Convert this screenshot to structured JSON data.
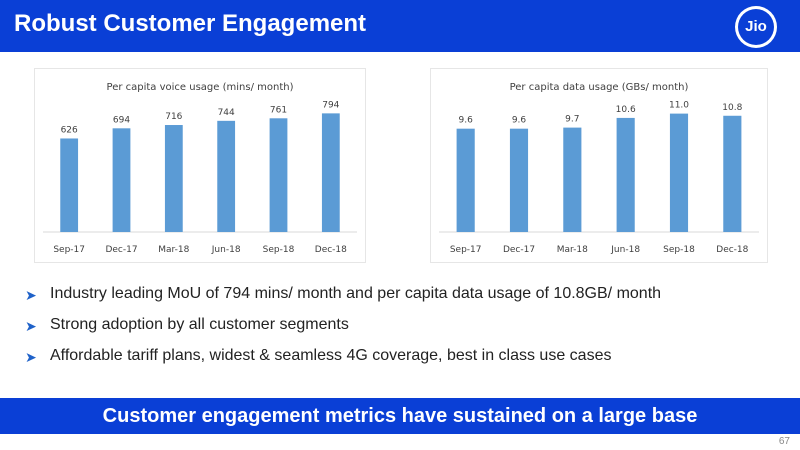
{
  "slide": {
    "title": "Robust Customer Engagement",
    "logo_text": "Jio",
    "footer": "Customer engagement metrics have sustained on a large base",
    "page_number": "67"
  },
  "bullets": [
    "Industry leading MoU of 794 mins/ month and per capita data usage of 10.8GB/ month",
    "Strong adoption by all customer segments",
    "Affordable tariff plans, widest & seamless 4G coverage, best in class use cases"
  ],
  "colors": {
    "brand": "#0a3fd6",
    "bar": "#5b9bd5",
    "bullet_mark": "#1f62c9"
  },
  "chart_data": [
    {
      "type": "bar",
      "title": "Per capita voice usage (mins/ month)",
      "categories": [
        "Sep-17",
        "Dec-17",
        "Mar-18",
        "Jun-18",
        "Sep-18",
        "Dec-18"
      ],
      "values": [
        626,
        694,
        716,
        744,
        761,
        794
      ],
      "labels": [
        "626",
        "694",
        "716",
        "744",
        "761",
        "794"
      ],
      "ylim": [
        0,
        850
      ],
      "grid": false,
      "legend": "none"
    },
    {
      "type": "bar",
      "title": "Per capita data usage (GBs/ month)",
      "categories": [
        "Sep-17",
        "Dec-17",
        "Mar-18",
        "Jun-18",
        "Sep-18",
        "Dec-18"
      ],
      "values": [
        9.6,
        9.6,
        9.7,
        10.6,
        11.0,
        10.8
      ],
      "labels": [
        "9.6",
        "9.6",
        "9.7",
        "10.6",
        "11.0",
        "10.8"
      ],
      "ylim": [
        0,
        11.8
      ],
      "grid": false,
      "legend": "none"
    }
  ]
}
